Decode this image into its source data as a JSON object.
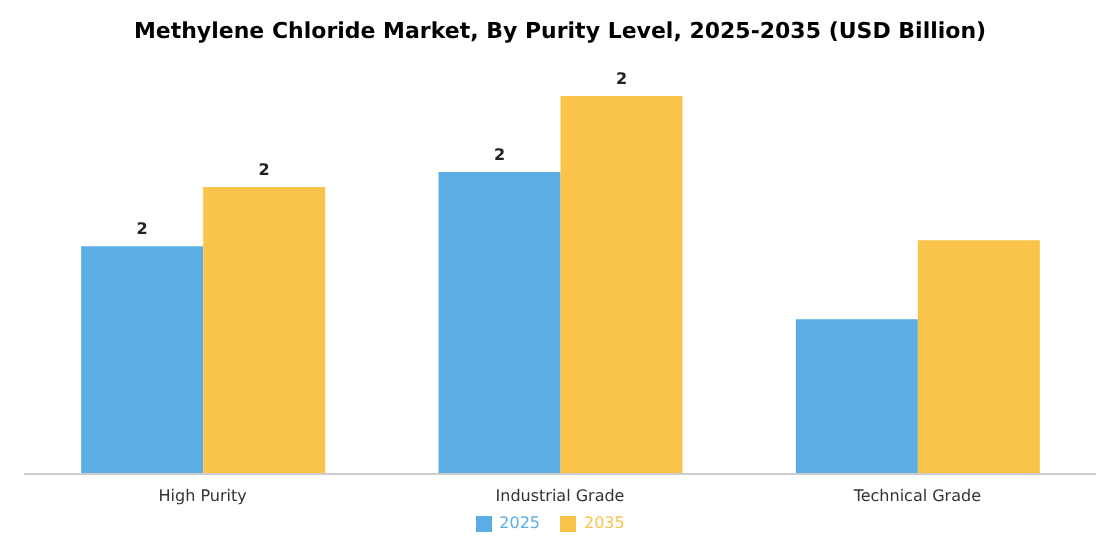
{
  "chart_data": {
    "type": "bar",
    "title": "Methylene Chloride Market, By Purity Level, 2025-2035 (USD Billion)",
    "categories": [
      "High Purity",
      "Industrial Grade",
      "Technical Grade"
    ],
    "series": [
      {
        "name": "2025",
        "color": "#5aaee3",
        "values": [
          1.5,
          1.99,
          1.02
        ],
        "value_labels": [
          "2",
          "2",
          null
        ]
      },
      {
        "name": "2035",
        "color": "#f9c449",
        "values": [
          1.89,
          2.49,
          1.54
        ],
        "value_labels": [
          "2",
          "2",
          null
        ]
      }
    ],
    "legend": "bottom",
    "grid": false
  }
}
